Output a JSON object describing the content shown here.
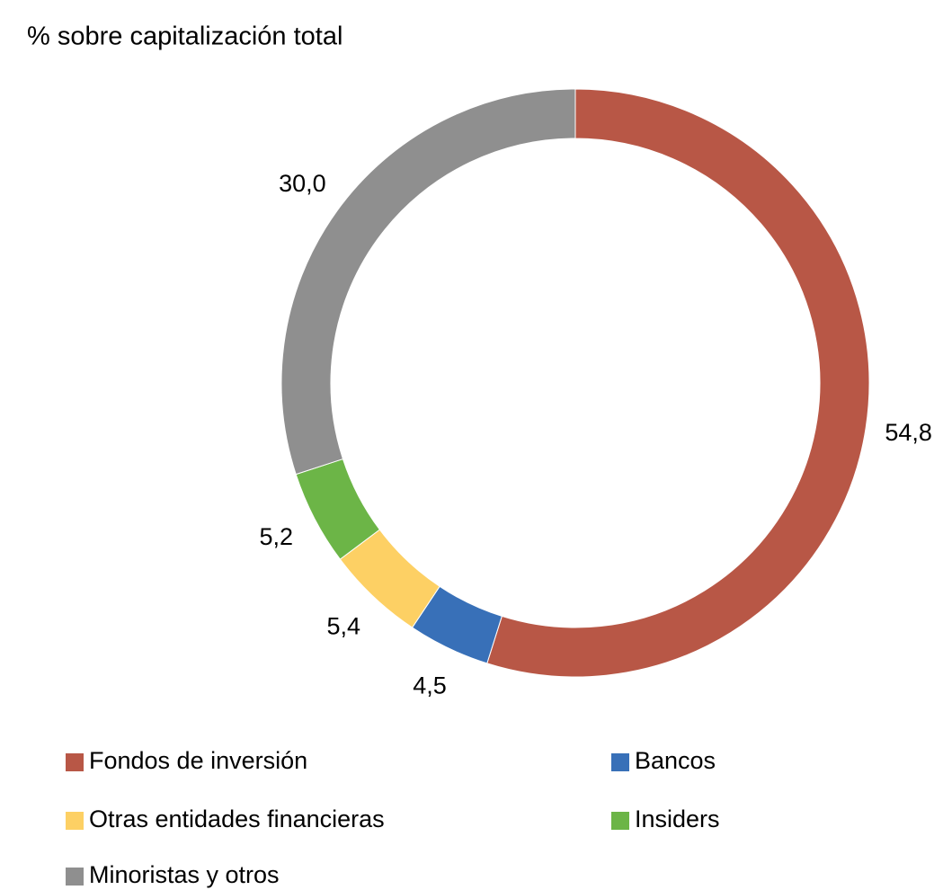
{
  "chart_data": {
    "type": "donut",
    "title": "% sobre capitalización total",
    "categories": [
      "Fondos de inversión",
      "Bancos",
      "Otras entidades financieras",
      "Insiders",
      "Minoristas y otros"
    ],
    "values": [
      54.8,
      4.5,
      5.4,
      5.2,
      30.0
    ],
    "value_labels": [
      "54,8",
      "4,5",
      "5,4",
      "5,2",
      "30,0"
    ],
    "colors": [
      "#b85746",
      "#3870b8",
      "#fdd064",
      "#6cb547",
      "#8f8f8f"
    ]
  }
}
